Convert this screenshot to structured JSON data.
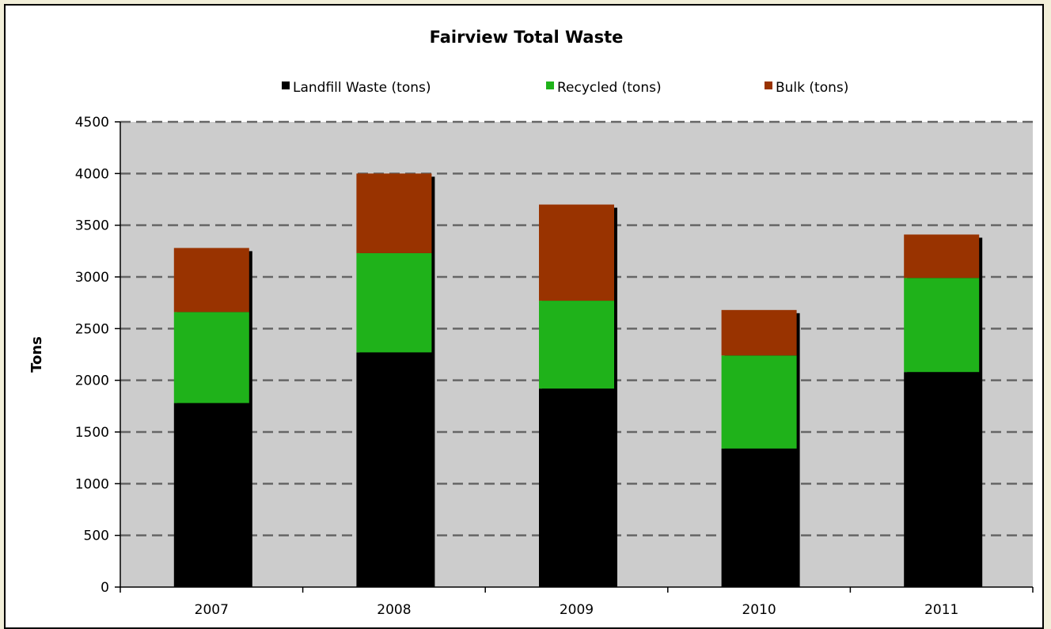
{
  "chart_data": {
    "type": "bar",
    "stacked": true,
    "title": "Fairview Total Waste",
    "xlabel": "",
    "ylabel": "Tons",
    "ylim": [
      0,
      4500
    ],
    "yticks": [
      0,
      500,
      1000,
      1500,
      2000,
      2500,
      3000,
      3500,
      4000,
      4500
    ],
    "grid": true,
    "legend_position": "top",
    "categories": [
      "2007",
      "2008",
      "2009",
      "2010",
      "2011"
    ],
    "series": [
      {
        "name": "Landfill Waste (tons)",
        "color": "#000000",
        "values": [
          1780,
          2270,
          1920,
          1340,
          2080
        ]
      },
      {
        "name": "Recycled (tons)",
        "color": "#1fb21a",
        "values": [
          880,
          960,
          850,
          900,
          910
        ]
      },
      {
        "name": "Bulk (tons)",
        "color": "#993300",
        "values": [
          620,
          770,
          930,
          440,
          420
        ]
      }
    ],
    "colors": {
      "plot_background": "#cccccc",
      "gridline": "#666666"
    }
  }
}
